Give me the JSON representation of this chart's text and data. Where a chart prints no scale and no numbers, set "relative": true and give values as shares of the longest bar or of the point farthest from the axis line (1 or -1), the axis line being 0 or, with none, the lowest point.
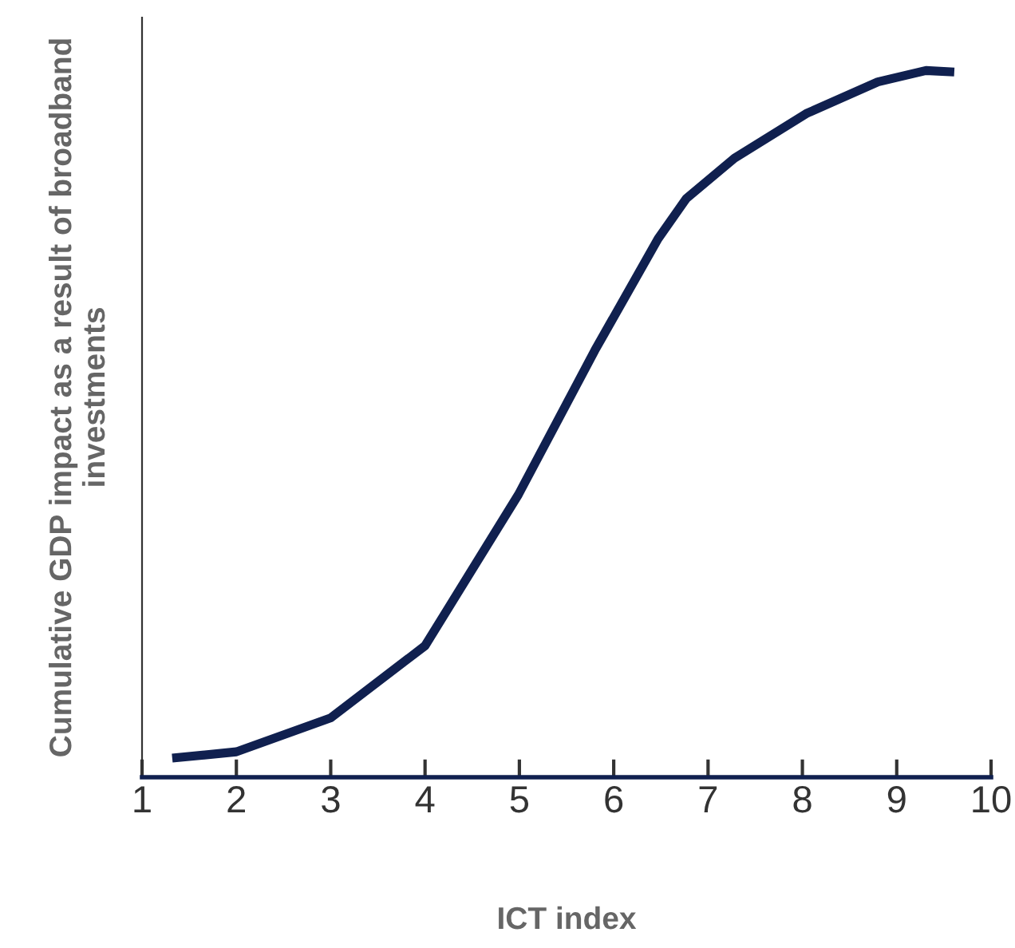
{
  "chart_data": {
    "type": "line",
    "relative": true,
    "xlabel": "ICT index",
    "ylabel": "Cumulative GDP impact as a result of broadband investments",
    "xlim": [
      1,
      10
    ],
    "xticks": [
      1,
      2,
      3,
      4,
      5,
      6,
      7,
      8,
      9,
      10
    ],
    "tick_labels": "x",
    "grid": false,
    "marker": "none",
    "line_style": "solid",
    "series": [
      {
        "color": "#10204f",
        "x": [
          1.32,
          2.0,
          3.0,
          4.0,
          4.99,
          5.8,
          6.47,
          6.77,
          7.28,
          8.04,
          8.8,
          9.31,
          9.61
        ],
        "values": [
          0.027,
          0.036,
          0.084,
          0.186,
          0.4,
          0.604,
          0.762,
          0.819,
          0.876,
          0.939,
          0.984,
          1,
          0.998
        ]
      }
    ]
  }
}
